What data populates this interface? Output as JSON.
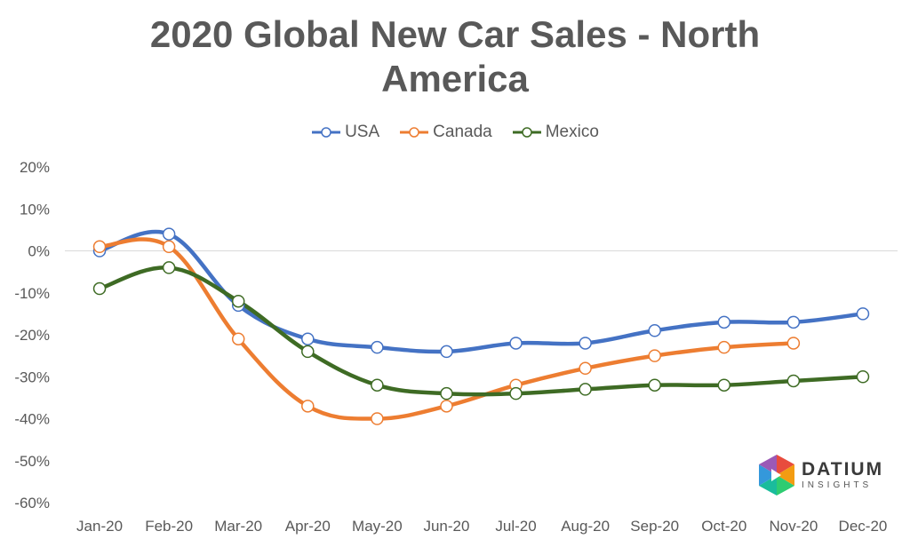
{
  "chart_data": {
    "type": "line",
    "title": "2020 Global New Car Sales - North America",
    "title_lines": [
      "2020 Global New Car Sales - North",
      "America"
    ],
    "categories": [
      "Jan-20",
      "Feb-20",
      "Mar-20",
      "Apr-20",
      "May-20",
      "Jun-20",
      "Jul-20",
      "Aug-20",
      "Sep-20",
      "Oct-20",
      "Nov-20",
      "Dec-20"
    ],
    "series": [
      {
        "name": "USA",
        "color": "#4472C4",
        "values": [
          0,
          4,
          -13,
          -21,
          -23,
          -24,
          -22,
          -22,
          -19,
          -17,
          -17,
          -15
        ]
      },
      {
        "name": "Canada",
        "color": "#ED7D31",
        "values": [
          1,
          1,
          -21,
          -37,
          -40,
          -37,
          -32,
          -28,
          -25,
          -23,
          -22,
          null
        ]
      },
      {
        "name": "Mexico",
        "color": "#3E6B24",
        "values": [
          -9,
          -4,
          -12,
          -24,
          -32,
          -34,
          -34,
          -33,
          -32,
          -32,
          -31,
          -30
        ]
      }
    ],
    "yticks": [
      20,
      10,
      0,
      -10,
      -20,
      -30,
      -40,
      -50,
      -60
    ],
    "ytick_labels": [
      "20%",
      "10%",
      "0%",
      "-10%",
      "-20%",
      "-30%",
      "-40%",
      "-50%",
      "-60%"
    ],
    "ylim": [
      -60,
      20
    ],
    "xlabel": "",
    "ylabel": "",
    "legend_position": "top",
    "grid": false,
    "zero_line": true,
    "smooth": true
  },
  "logo": {
    "name": "DATIUM",
    "subtitle": "INSIGHTS"
  }
}
